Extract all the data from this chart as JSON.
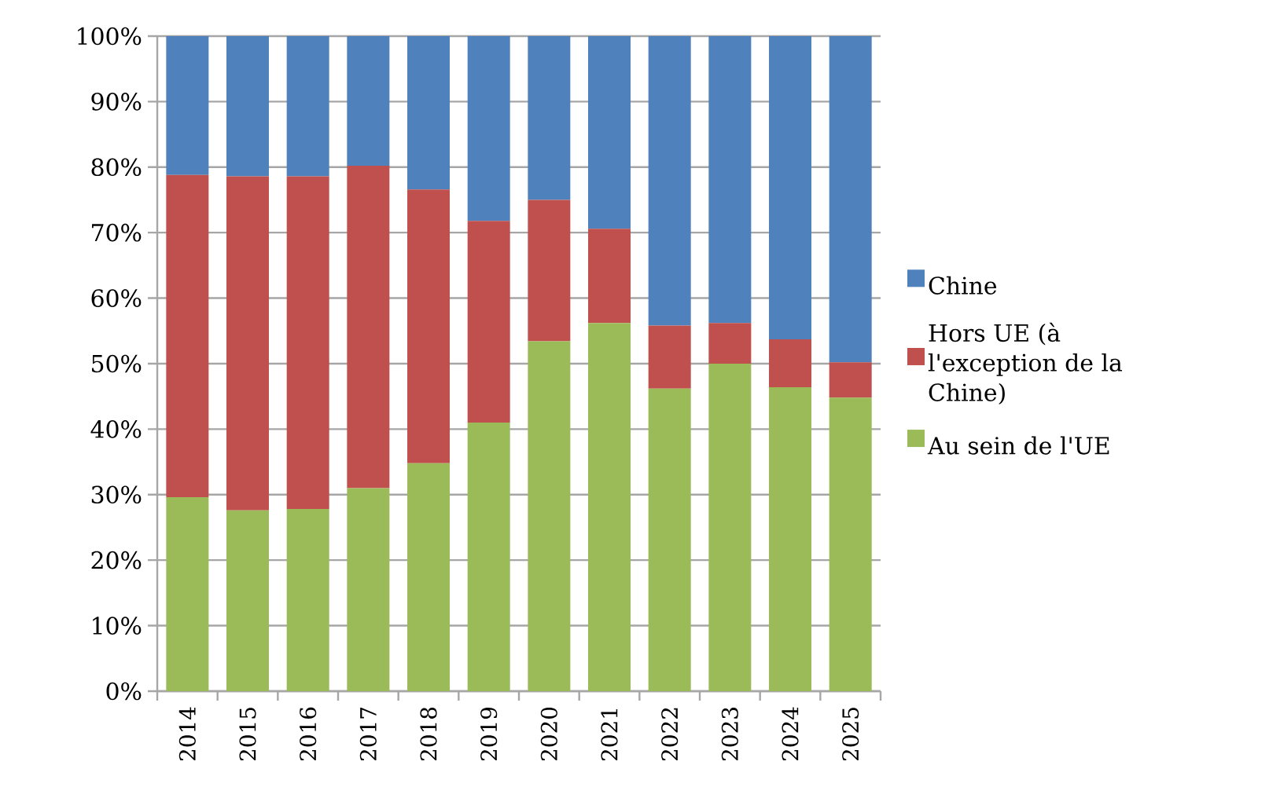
{
  "chart_data": {
    "type": "bar",
    "stacked": true,
    "categories": [
      "2014",
      "2015",
      "2016",
      "2017",
      "2018",
      "2019",
      "2020",
      "2021",
      "2022",
      "2023",
      "2024",
      "2025"
    ],
    "series": [
      {
        "name": "Au sein de l'UE",
        "color": "#9bbb59",
        "values": [
          29.6,
          27.6,
          27.8,
          31.0,
          34.8,
          41.0,
          53.4,
          56.2,
          46.2,
          50.0,
          46.4,
          44.8
        ]
      },
      {
        "name": "Hors UE (à l'exception de la Chine)",
        "color": "#c0504d",
        "values": [
          49.2,
          51.0,
          50.8,
          49.2,
          41.8,
          30.8,
          21.6,
          14.4,
          9.6,
          6.2,
          7.3,
          5.4
        ]
      },
      {
        "name": "Chine",
        "color": "#4f81bd",
        "values": [
          21.2,
          21.4,
          21.4,
          19.8,
          23.4,
          28.2,
          25.0,
          29.4,
          44.2,
          43.8,
          46.3,
          49.8
        ]
      }
    ],
    "ylim": [
      0,
      100
    ],
    "yticks": [
      {
        "value": 0,
        "label": "0%"
      },
      {
        "value": 10,
        "label": "10%"
      },
      {
        "value": 20,
        "label": "20%"
      },
      {
        "value": 30,
        "label": "30%"
      },
      {
        "value": 40,
        "label": "40%"
      },
      {
        "value": 50,
        "label": "50%"
      },
      {
        "value": 60,
        "label": "60%"
      },
      {
        "value": 70,
        "label": "70%"
      },
      {
        "value": 80,
        "label": "80%"
      },
      {
        "value": 90,
        "label": "90%"
      },
      {
        "value": 100,
        "label": "100%"
      }
    ],
    "grid": "y",
    "legend": "right"
  }
}
